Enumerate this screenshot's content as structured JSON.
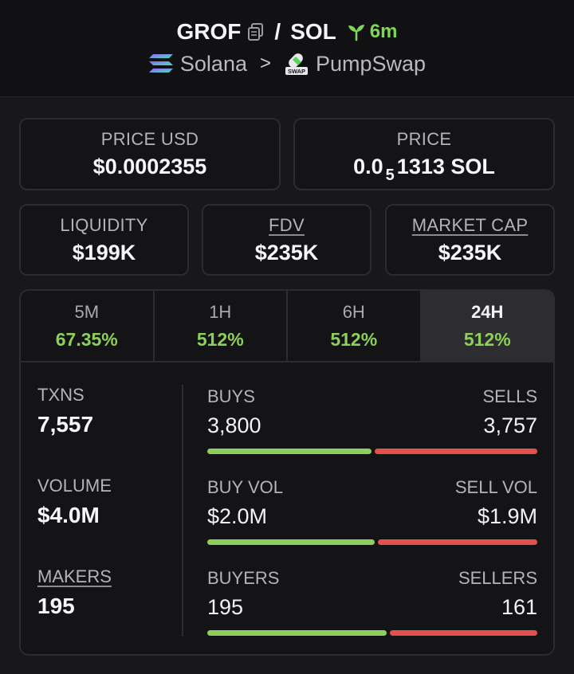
{
  "header": {
    "token": "GROF",
    "separator": "/",
    "quote": "SOL",
    "age": "6m",
    "chain": "Solana",
    "chevron": ">",
    "dex": "PumpSwap",
    "dex_icon_text": "SWAP"
  },
  "price_usd": {
    "label": "PRICE USD",
    "value": "$0.0002355"
  },
  "price": {
    "label": "PRICE",
    "prefix": "0.0",
    "zero_count": "5",
    "suffix": "1313 SOL"
  },
  "liquidity": {
    "label": "LIQUIDITY",
    "value": "$199K"
  },
  "fdv": {
    "label": "FDV",
    "value": "$235K"
  },
  "market_cap": {
    "label": "MARKET CAP",
    "value": "$235K"
  },
  "tabs": [
    {
      "label": "5M",
      "value": "67.35%"
    },
    {
      "label": "1H",
      "value": "512%"
    },
    {
      "label": "6H",
      "value": "512%"
    },
    {
      "label": "24H",
      "value": "512%"
    }
  ],
  "active_tab": "24H",
  "stats": {
    "txns": {
      "label": "TXNS",
      "value": "7,557"
    },
    "volume": {
      "label": "VOLUME",
      "value": "$4.0M"
    },
    "makers": {
      "label": "MAKERS",
      "value": "195"
    }
  },
  "splits": {
    "txns": {
      "left_label": "BUYS",
      "left_value": "3,800",
      "right_label": "SELLS",
      "right_value": "3,757",
      "buy_fraction": 0.503
    },
    "volume": {
      "left_label": "BUY VOL",
      "left_value": "$2.0M",
      "right_label": "SELL VOL",
      "right_value": "$1.9M",
      "buy_fraction": 0.513
    },
    "makers": {
      "left_label": "BUYERS",
      "left_value": "195",
      "right_label": "SELLERS",
      "right_value": "161",
      "buy_fraction": 0.548
    }
  },
  "colors": {
    "positive": "#8ccf5a",
    "negative": "#e4504c",
    "background": "#18181a"
  }
}
